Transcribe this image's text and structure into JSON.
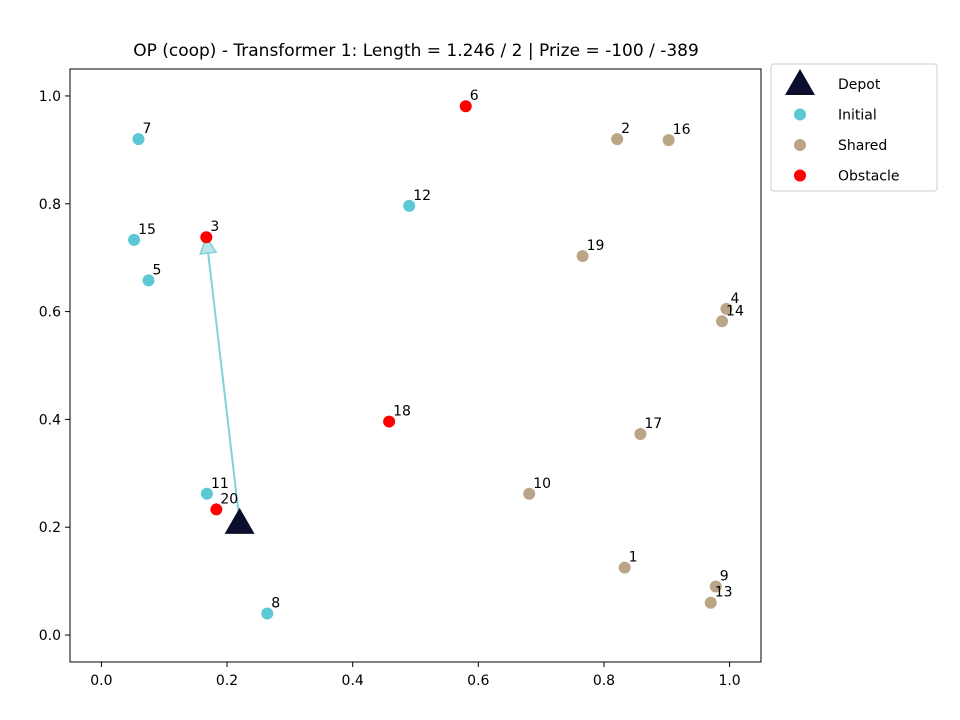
{
  "chart_data": {
    "type": "scatter",
    "title": "OP (coop) - Transformer 1: Length = 1.246 / 2 | Prize = -100 / -389",
    "xlabel": "",
    "ylabel": "",
    "xlim": [
      -0.05,
      1.05
    ],
    "ylim": [
      -0.05,
      1.05
    ],
    "x_ticks": [
      "0.0",
      "0.2",
      "0.4",
      "0.6",
      "0.8",
      "1.0"
    ],
    "y_ticks": [
      "0.0",
      "0.2",
      "0.4",
      "0.6",
      "0.8",
      "1.0"
    ],
    "grid": false,
    "legend_placement": "outside-top-right",
    "depot": {
      "x": 0.22,
      "y": 0.21,
      "color": "#0b0f2b"
    },
    "series": [
      {
        "name": "Initial",
        "color": "#5bc8d4",
        "points": [
          {
            "label": "7",
            "x": 0.059,
            "y": 0.92
          },
          {
            "label": "15",
            "x": 0.052,
            "y": 0.733
          },
          {
            "label": "5",
            "x": 0.075,
            "y": 0.658
          },
          {
            "label": "12",
            "x": 0.49,
            "y": 0.796
          },
          {
            "label": "11",
            "x": 0.168,
            "y": 0.262
          },
          {
            "label": "8",
            "x": 0.264,
            "y": 0.04
          }
        ]
      },
      {
        "name": "Shared",
        "color": "#bba587",
        "points": [
          {
            "label": "2",
            "x": 0.821,
            "y": 0.92
          },
          {
            "label": "16",
            "x": 0.903,
            "y": 0.918
          },
          {
            "label": "19",
            "x": 0.766,
            "y": 0.703
          },
          {
            "label": "4",
            "x": 0.995,
            "y": 0.605
          },
          {
            "label": "14",
            "x": 0.988,
            "y": 0.582
          },
          {
            "label": "17",
            "x": 0.858,
            "y": 0.373
          },
          {
            "label": "10",
            "x": 0.681,
            "y": 0.262
          },
          {
            "label": "1",
            "x": 0.833,
            "y": 0.125
          },
          {
            "label": "9",
            "x": 0.978,
            "y": 0.09
          },
          {
            "label": "13",
            "x": 0.97,
            "y": 0.06
          }
        ]
      },
      {
        "name": "Obstacle",
        "color": "#ff0000",
        "points": [
          {
            "label": "6",
            "x": 0.58,
            "y": 0.981
          },
          {
            "label": "3",
            "x": 0.167,
            "y": 0.738
          },
          {
            "label": "18",
            "x": 0.458,
            "y": 0.396
          },
          {
            "label": "20",
            "x": 0.183,
            "y": 0.233
          }
        ]
      }
    ],
    "route": {
      "color": "#7fd2d8",
      "path": [
        {
          "x": 0.22,
          "y": 0.21
        },
        {
          "x": 0.167,
          "y": 0.738
        }
      ]
    },
    "legend": [
      {
        "label": "Depot",
        "marker": "triangle",
        "color": "#0b0f2b"
      },
      {
        "label": "Initial",
        "marker": "circle",
        "color": "#5bc8d4"
      },
      {
        "label": "Shared",
        "marker": "circle",
        "color": "#bba587"
      },
      {
        "label": "Obstacle",
        "marker": "circle",
        "color": "#ff0000"
      }
    ]
  }
}
